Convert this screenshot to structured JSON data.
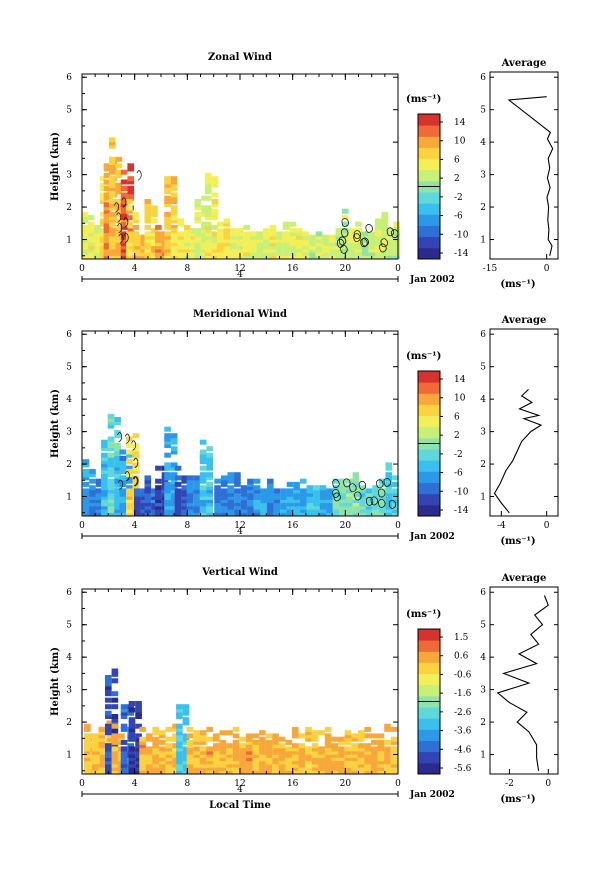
{
  "colorbar_colors": [
    "#2b2b8c",
    "#3345b5",
    "#2f6fd6",
    "#2c98e8",
    "#39c0ef",
    "#5fd8dc",
    "#8fe3a8",
    "#c8ef78",
    "#f3ef58",
    "#fbd23f",
    "#f8a83b",
    "#ef6a36",
    "#d6322e"
  ],
  "contour_color": "#000000",
  "chart_data": [
    {
      "type": "heatmap",
      "title": "Zonal Wind",
      "ylabel": "Height (km)",
      "xlabel": "",
      "x_ticks": [
        "0",
        "4",
        "8",
        "12",
        "16",
        "20",
        "0"
      ],
      "x_range_hours": [
        0,
        24
      ],
      "y_ticks": [
        "1",
        "2",
        "3",
        "4",
        "5",
        "6"
      ],
      "y_range_km": [
        0.4,
        6
      ],
      "date_marker": "4",
      "date_label": "Jan 2002",
      "colorbar_unit": "(ms⁻¹)",
      "colorbar_ticks": [
        "14",
        "10",
        "6",
        "2",
        "-2",
        "-6",
        "-10",
        "-14"
      ],
      "colorbar_range": [
        -14,
        14
      ],
      "columns": [
        {
          "t": 0.2,
          "top": 1.9,
          "v": 4
        },
        {
          "t": 0.7,
          "top": 1.6,
          "v": 4
        },
        {
          "t": 1.2,
          "top": 1.4,
          "v": 3
        },
        {
          "t": 1.6,
          "top": 2.8,
          "v": 6
        },
        {
          "t": 1.9,
          "top": 3.3,
          "v": 9
        },
        {
          "t": 2.3,
          "top": 4.0,
          "v": 7
        },
        {
          "t": 2.8,
          "top": 2.3,
          "v": 8
        },
        {
          "t": 3.2,
          "top": 3.2,
          "v": 12
        },
        {
          "t": 3.6,
          "top": 2.1,
          "v": 6
        },
        {
          "t": 4.2,
          "top": 1.2,
          "v": 8
        },
        {
          "t": 5.0,
          "top": 2.2,
          "v": 6
        },
        {
          "t": 5.8,
          "top": 1.3,
          "v": 9
        },
        {
          "t": 6.5,
          "top": 3.0,
          "v": 7
        },
        {
          "t": 7.0,
          "top": 1.6,
          "v": 5
        },
        {
          "t": 8.0,
          "top": 1.5,
          "v": 4
        },
        {
          "t": 8.8,
          "top": 2.2,
          "v": 3
        },
        {
          "t": 9.6,
          "top": 3.0,
          "v": 4
        },
        {
          "t": 10.5,
          "top": 1.5,
          "v": 5
        },
        {
          "t": 11.5,
          "top": 1.4,
          "v": 4
        },
        {
          "t": 12.5,
          "top": 1.3,
          "v": 4
        },
        {
          "t": 13.5,
          "top": 1.4,
          "v": 3
        },
        {
          "t": 14.5,
          "top": 1.3,
          "v": 4
        },
        {
          "t": 15.5,
          "top": 1.4,
          "v": 3
        },
        {
          "t": 16.5,
          "top": 1.2,
          "v": 4
        },
        {
          "t": 17.5,
          "top": 1.2,
          "v": 2
        },
        {
          "t": 18.5,
          "top": 1.1,
          "v": 3
        },
        {
          "t": 19.5,
          "top": 1.8,
          "v": 2
        },
        {
          "t": 20.5,
          "top": 1.4,
          "v": 3
        },
        {
          "t": 21.5,
          "top": 1.3,
          "v": 2
        },
        {
          "t": 22.5,
          "top": 1.8,
          "v": 3
        },
        {
          "t": 23.4,
          "top": 1.6,
          "v": 2
        }
      ],
      "profile": {
        "title": "Average",
        "xlabel": "(ms⁻¹)",
        "x_ticks": [
          "-15",
          "0"
        ],
        "x_range": [
          -15,
          3
        ],
        "heights": [
          0.5,
          0.8,
          1.0,
          1.3,
          1.6,
          2.0,
          2.3,
          2.6,
          2.9,
          3.2,
          3.5,
          3.8,
          4.1,
          4.3,
          5.3,
          5.4
        ],
        "values": [
          0.8,
          1.4,
          0.4,
          0.6,
          0.3,
          0.5,
          0.1,
          0.9,
          0.2,
          0.8,
          0.4,
          1.6,
          0.2,
          1.0,
          -10.0,
          0.0
        ]
      }
    },
    {
      "type": "heatmap",
      "title": "Meridional Wind",
      "ylabel": "Height (km)",
      "xlabel": "",
      "x_ticks": [
        "0",
        "4",
        "8",
        "12",
        "16",
        "20",
        "0"
      ],
      "x_range_hours": [
        0,
        24
      ],
      "y_ticks": [
        "1",
        "2",
        "3",
        "4",
        "5",
        "6"
      ],
      "y_range_km": [
        0.4,
        6
      ],
      "date_marker": "4",
      "date_label": "Jan 2002",
      "colorbar_unit": "(ms⁻¹)",
      "colorbar_ticks": [
        "14",
        "10",
        "6",
        "2",
        "-2",
        "-6",
        "-10",
        "-14"
      ],
      "colorbar_range": [
        -14,
        14
      ],
      "columns": [
        {
          "t": 0.3,
          "top": 2.0,
          "v": -6
        },
        {
          "t": 0.8,
          "top": 1.6,
          "v": -8
        },
        {
          "t": 1.3,
          "top": 1.3,
          "v": -7
        },
        {
          "t": 1.7,
          "top": 2.6,
          "v": -4
        },
        {
          "t": 2.2,
          "top": 3.5,
          "v": -2
        },
        {
          "t": 2.7,
          "top": 2.2,
          "v": -5
        },
        {
          "t": 3.1,
          "top": 2.4,
          "v": -6
        },
        {
          "t": 3.6,
          "top": 3.0,
          "v": 6
        },
        {
          "t": 4.2,
          "top": 1.4,
          "v": -10
        },
        {
          "t": 5.0,
          "top": 1.5,
          "v": -9
        },
        {
          "t": 5.8,
          "top": 2.0,
          "v": -11
        },
        {
          "t": 6.5,
          "top": 3.0,
          "v": -6
        },
        {
          "t": 7.3,
          "top": 1.8,
          "v": -10
        },
        {
          "t": 8.2,
          "top": 1.6,
          "v": -7
        },
        {
          "t": 9.2,
          "top": 2.7,
          "v": -4
        },
        {
          "t": 10.3,
          "top": 1.5,
          "v": -8
        },
        {
          "t": 11.3,
          "top": 1.6,
          "v": -7
        },
        {
          "t": 12.3,
          "top": 1.4,
          "v": -8
        },
        {
          "t": 13.3,
          "top": 1.5,
          "v": -6
        },
        {
          "t": 14.3,
          "top": 1.4,
          "v": -7
        },
        {
          "t": 15.3,
          "top": 1.3,
          "v": -6
        },
        {
          "t": 16.3,
          "top": 1.4,
          "v": -5
        },
        {
          "t": 17.3,
          "top": 1.3,
          "v": -4
        },
        {
          "t": 18.3,
          "top": 1.2,
          "v": -6
        },
        {
          "t": 19.3,
          "top": 1.5,
          "v": -1
        },
        {
          "t": 20.3,
          "top": 1.6,
          "v": 0
        },
        {
          "t": 21.3,
          "top": 1.3,
          "v": -2
        },
        {
          "t": 22.3,
          "top": 1.4,
          "v": -1
        },
        {
          "t": 23.3,
          "top": 2.2,
          "v": -3
        }
      ],
      "profile": {
        "title": "Average",
        "xlabel": "(ms⁻¹)",
        "x_ticks": [
          "-4",
          "0"
        ],
        "x_range": [
          -5,
          1
        ],
        "heights": [
          0.5,
          0.8,
          1.1,
          1.4,
          1.8,
          2.1,
          2.4,
          2.7,
          3.0,
          3.2,
          3.4,
          3.5,
          3.7,
          3.9,
          4.1,
          4.3
        ],
        "values": [
          -3.3,
          -4.0,
          -4.6,
          -4.1,
          -3.6,
          -3.0,
          -2.6,
          -2.2,
          -1.4,
          -0.5,
          -2.0,
          -0.7,
          -2.4,
          -1.3,
          -2.2,
          -1.6
        ]
      }
    },
    {
      "type": "heatmap",
      "title": "Vertical Wind",
      "ylabel": "Height (km)",
      "xlabel": "Local Time",
      "x_ticks": [
        "0",
        "4",
        "8",
        "12",
        "16",
        "20",
        "0"
      ],
      "x_range_hours": [
        0,
        24
      ],
      "y_ticks": [
        "1",
        "2",
        "3",
        "4",
        "5",
        "6"
      ],
      "y_range_km": [
        0.4,
        6
      ],
      "date_marker": "4",
      "date_label": "Jan 2002",
      "colorbar_unit": "(ms⁻¹)",
      "colorbar_ticks": [
        "1.5",
        "0.6",
        "-0.6",
        "-1.6",
        "-2.6",
        "-3.6",
        "-4.6",
        "-5.6"
      ],
      "colorbar_range": [
        -6,
        2
      ],
      "columns": [
        {
          "t": 0.4,
          "top": 1.8,
          "v": 0.0
        },
        {
          "t": 1.0,
          "top": 1.7,
          "v": 0.2
        },
        {
          "t": 1.6,
          "top": 1.9,
          "v": 0.1
        },
        {
          "t": 2.0,
          "top": 3.5,
          "v": -5.0
        },
        {
          "t": 2.5,
          "top": 1.8,
          "v": 0.2
        },
        {
          "t": 3.2,
          "top": 2.6,
          "v": -4.5
        },
        {
          "t": 3.8,
          "top": 2.6,
          "v": -5.2
        },
        {
          "t": 4.6,
          "top": 1.8,
          "v": 0.3
        },
        {
          "t": 5.6,
          "top": 1.7,
          "v": 0.1
        },
        {
          "t": 6.6,
          "top": 1.8,
          "v": 0.0
        },
        {
          "t": 7.4,
          "top": 2.4,
          "v": -3.0
        },
        {
          "t": 8.2,
          "top": 1.8,
          "v": 0.2
        },
        {
          "t": 9.2,
          "top": 1.8,
          "v": 0.3
        },
        {
          "t": 10.2,
          "top": 1.7,
          "v": 0.1
        },
        {
          "t": 11.2,
          "top": 1.8,
          "v": 0.2
        },
        {
          "t": 12.2,
          "top": 1.6,
          "v": 0.4
        },
        {
          "t": 13.2,
          "top": 1.8,
          "v": 0.2
        },
        {
          "t": 14.2,
          "top": 1.7,
          "v": 0.1
        },
        {
          "t": 15.2,
          "top": 1.6,
          "v": 0.3
        },
        {
          "t": 16.2,
          "top": 1.8,
          "v": 0.2
        },
        {
          "t": 17.2,
          "top": 1.7,
          "v": 0.0
        },
        {
          "t": 18.2,
          "top": 1.8,
          "v": 0.2
        },
        {
          "t": 19.2,
          "top": 1.6,
          "v": 0.4
        },
        {
          "t": 20.2,
          "top": 1.7,
          "v": 0.1
        },
        {
          "t": 21.2,
          "top": 1.8,
          "v": 0.2
        },
        {
          "t": 22.2,
          "top": 1.6,
          "v": 0.3
        },
        {
          "t": 23.2,
          "top": 1.8,
          "v": 0.1
        }
      ],
      "profile": {
        "title": "Average",
        "xlabel": "(ms⁻¹)",
        "x_ticks": [
          "-2",
          "0"
        ],
        "x_range": [
          -3,
          0.5
        ],
        "heights": [
          0.5,
          0.9,
          1.3,
          1.7,
          2.0,
          2.3,
          2.6,
          2.9,
          3.2,
          3.5,
          3.8,
          4.1,
          4.4,
          4.7,
          5.0,
          5.3,
          5.6,
          5.9
        ],
        "values": [
          -0.5,
          -0.6,
          -0.6,
          -1.0,
          -1.6,
          -1.1,
          -2.0,
          -2.6,
          -1.0,
          -2.3,
          -0.6,
          -1.5,
          -0.5,
          -0.9,
          -0.3,
          -0.7,
          0.0,
          -0.2
        ]
      }
    }
  ]
}
